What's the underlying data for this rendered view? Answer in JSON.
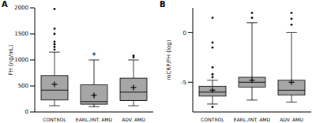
{
  "chart_data": [
    {
      "type": "box",
      "title": "A",
      "y_label": "FH (ng/mL)",
      "categories": [
        "CONTROL",
        "EARL./INT. AMD",
        "ADV. AMD"
      ],
      "ylim": [
        0,
        2000
      ],
      "yticks": [
        0,
        500,
        1000,
        1500,
        2000
      ],
      "color": "#a6a6a6",
      "marker": "plus",
      "boxes": [
        {
          "low": 120,
          "q1": 230,
          "median": 420,
          "q3": 700,
          "high": 1150,
          "mean": 530,
          "outliers": [
            1200,
            1250,
            1300,
            1350,
            1500,
            1600,
            1980
          ]
        },
        {
          "low": 100,
          "q1": 150,
          "median": 200,
          "q3": 520,
          "high": 1000,
          "mean": 320,
          "outliers": [],
          "annotation": "*"
        },
        {
          "low": 120,
          "q1": 220,
          "median": 380,
          "q3": 650,
          "high": 1000,
          "mean": 470,
          "outliers": [
            1050,
            1080
          ]
        }
      ]
    },
    {
      "type": "box",
      "title": "B",
      "y_label": "mCRP/FH (log)",
      "categories": [
        "CONTROL",
        "EARL./INT. AMD",
        "ADV. AMD"
      ],
      "ylim": [
        -8,
        2.5
      ],
      "yticks": [
        -5,
        0
      ],
      "color": "#a6a6a6",
      "marker": "plus",
      "boxes": [
        {
          "low": -7.2,
          "q1": -6.4,
          "median": -6.0,
          "q3": -5.4,
          "high": -4.8,
          "mean": -5.8,
          "outliers": [
            -7.5,
            -4.5,
            -4.2,
            -3.5,
            -1.5,
            -1.0,
            1.5
          ]
        },
        {
          "low": -6.8,
          "q1": -5.5,
          "median": -5.0,
          "q3": -4.5,
          "high": 1.0,
          "mean": -4.8,
          "outliers": [
            1.5,
            2.0
          ]
        },
        {
          "low": -7.0,
          "q1": -6.3,
          "median": -5.8,
          "q3": -4.8,
          "high": 0.0,
          "mean": -5.0,
          "outliers": [
            0.8,
            1.4,
            2.0
          ]
        }
      ]
    }
  ]
}
